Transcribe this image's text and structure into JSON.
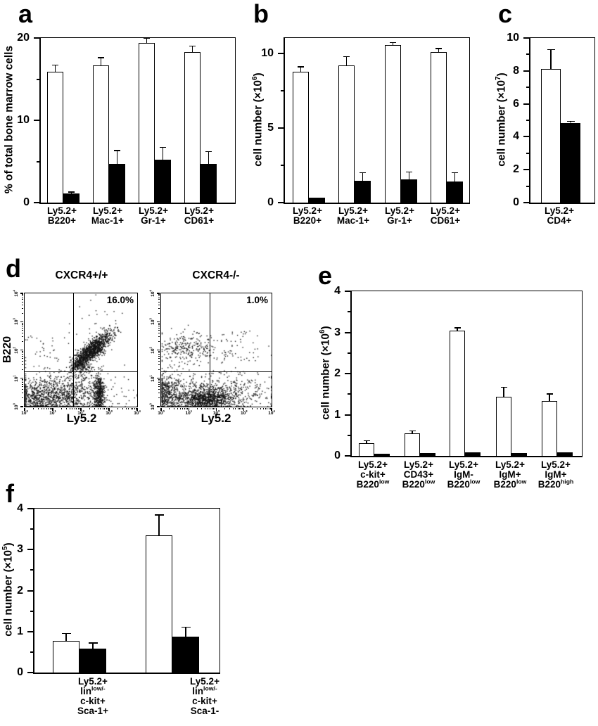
{
  "chart_data": [
    {
      "type": "bar",
      "panel": "a",
      "ylabel": "% of total bone marrow cells",
      "ylim": [
        0,
        20
      ],
      "yticks": [
        0,
        10,
        20
      ],
      "yticks_minor": [
        5,
        15
      ],
      "categories": [
        [
          "Ly5.2+",
          "B220+"
        ],
        [
          "Ly5.2+",
          "Mac-1+"
        ],
        [
          "Ly5.2+",
          "Gr-1+"
        ],
        [
          "Ly5.2+",
          "CD61+"
        ]
      ],
      "series": [
        {
          "name": "white",
          "fill": "#ffffff",
          "values": [
            15.9,
            16.7,
            19.4,
            18.3
          ],
          "errors": [
            0.8,
            0.9,
            0.6,
            0.7
          ]
        },
        {
          "name": "black",
          "fill": "#000000",
          "values": [
            1.1,
            4.7,
            5.2,
            4.7
          ],
          "errors": [
            0.2,
            1.6,
            1.5,
            1.5
          ]
        }
      ]
    },
    {
      "type": "bar",
      "panel": "b",
      "ylabel": "cell number (×10^{6})",
      "ylim": [
        0,
        11.05
      ],
      "yticks": [
        0,
        5,
        10
      ],
      "yticks_minor": [
        2.5,
        7.5
      ],
      "categories": [
        [
          "Ly5.2+",
          "B220+"
        ],
        [
          "Ly5.2+",
          "Mac-1+"
        ],
        [
          "Ly5.2+",
          "Gr-1+"
        ],
        [
          "Ly5.2+",
          "CD61+"
        ]
      ],
      "series": [
        {
          "name": "white",
          "fill": "#ffffff",
          "values": [
            8.8,
            9.2,
            10.6,
            10.1
          ],
          "errors": [
            0.3,
            0.6,
            0.15,
            0.25
          ]
        },
        {
          "name": "black",
          "fill": "#000000",
          "values": [
            0.35,
            1.45,
            1.55,
            1.4
          ],
          "errors": [
            0,
            0.55,
            0.5,
            0.6
          ]
        }
      ]
    },
    {
      "type": "bar",
      "panel": "c",
      "ylabel": "cell number (×10^{7})",
      "ylim": [
        0,
        10
      ],
      "yticks": [
        0,
        2,
        4,
        6,
        8,
        10
      ],
      "yticks_minor": [
        1,
        3,
        5,
        7,
        9
      ],
      "categories": [
        [
          "Ly5.2+",
          "CD4+"
        ]
      ],
      "series": [
        {
          "name": "white",
          "fill": "#ffffff",
          "values": [
            8.1
          ],
          "errors": [
            1.2
          ]
        },
        {
          "name": "black",
          "fill": "#000000",
          "values": [
            4.85
          ],
          "errors": [
            0.08
          ]
        }
      ]
    },
    {
      "type": "scatter",
      "panel": "d",
      "plots": [
        {
          "title": "CXCR4+/+",
          "xlabel": "Ly5.2",
          "ylabel": "B220",
          "gate_label": "16.0%",
          "xticks": [
            "10^{0}",
            "10^{1}",
            "10^{2}",
            "10^{3}",
            "10^{4}"
          ],
          "yticks": [
            "10^{0}",
            "10^{1}",
            "10^{2}",
            "10^{3}",
            "10^{4}"
          ],
          "quadrant_x_frac": 0.43,
          "quadrant_y_frac": 0.31,
          "clusters": [
            {
              "type": "diag",
              "x0": 0.45,
              "y0": 0.37,
              "x1": 0.8,
              "y1": 0.68,
              "tmean": 0.38,
              "tsd": 0.25,
              "spread": 0.03,
              "n": 1300
            },
            {
              "type": "blob",
              "cx": 0.52,
              "cy": 0.33,
              "sx": 0.05,
              "sy": 0.04,
              "n": 80
            },
            {
              "type": "blob",
              "cx": 0.35,
              "cy": 0.1,
              "sx": 0.18,
              "sy": 0.085,
              "n": 800
            },
            {
              "type": "blob",
              "cx": 0.66,
              "cy": 0.11,
              "sx": 0.022,
              "sy": 0.095,
              "n": 450
            },
            {
              "type": "blob",
              "cx": 0.09,
              "cy": 0.09,
              "sx": 0.09,
              "sy": 0.075,
              "n": 380
            },
            {
              "type": "blob",
              "cx": 0.4,
              "cy": 0.13,
              "sx": 0.3,
              "sy": 0.1,
              "n": 200
            },
            {
              "type": "blob",
              "cx": 0.22,
              "cy": 0.5,
              "sx": 0.16,
              "sy": 0.13,
              "n": 45
            },
            {
              "type": "blob",
              "cx": 0.62,
              "cy": 0.78,
              "sx": 0.12,
              "sy": 0.09,
              "n": 20
            }
          ]
        },
        {
          "title": "CXCR4-/-",
          "xlabel": "Ly5.2",
          "ylabel": "",
          "gate_label": "1.0%",
          "xticks": [
            "10^{0}",
            "10^{1}",
            "10^{2}",
            "10^{3}",
            "10^{4}"
          ],
          "yticks": [
            "10^{0}",
            "10^{1}",
            "10^{2}",
            "10^{3}",
            "10^{4}"
          ],
          "quadrant_x_frac": 0.44,
          "quadrant_y_frac": 0.31,
          "clusters": [
            {
              "type": "blob",
              "cx": 0.22,
              "cy": 0.53,
              "sx": 0.12,
              "sy": 0.065,
              "n": 200
            },
            {
              "type": "blob",
              "cx": 0.45,
              "cy": 0.5,
              "sx": 0.22,
              "sy": 0.09,
              "n": 120
            },
            {
              "type": "blob",
              "cx": 0.4,
              "cy": 0.075,
              "sx": 0.14,
              "sy": 0.055,
              "n": 1100
            },
            {
              "type": "blob",
              "cx": 0.05,
              "cy": 0.12,
              "sx": 0.06,
              "sy": 0.1,
              "n": 420
            },
            {
              "type": "blob",
              "cx": 0.45,
              "cy": 0.15,
              "sx": 0.28,
              "sy": 0.1,
              "n": 350
            },
            {
              "type": "blob",
              "cx": 0.8,
              "cy": 0.1,
              "sx": 0.1,
              "sy": 0.07,
              "n": 60
            },
            {
              "type": "blob",
              "cx": 0.75,
              "cy": 0.62,
              "sx": 0.1,
              "sy": 0.07,
              "n": 10
            }
          ]
        }
      ]
    },
    {
      "type": "bar",
      "panel": "e",
      "ylabel": "cell number (×10^{6})",
      "ylim": [
        0,
        4
      ],
      "yticks": [
        0,
        1,
        2,
        3,
        4
      ],
      "yticks_minor": [
        0.5,
        1.5,
        2.5,
        3.5
      ],
      "categories": [
        [
          "Ly5.2+",
          "c-kit+",
          "B220^{low}"
        ],
        [
          "Ly5.2+",
          "CD43+",
          "B220^{low}"
        ],
        [
          "Ly5.2+",
          "IgM-",
          "B220^{low}"
        ],
        [
          "Ly5.2+",
          "IgM+",
          "B220^{low}"
        ],
        [
          "Ly5.2+",
          "IgM+",
          "B220^{high}"
        ]
      ],
      "series": [
        {
          "name": "white",
          "fill": "#ffffff",
          "values": [
            0.31,
            0.55,
            3.05,
            1.43,
            1.33
          ],
          "errors": [
            0.06,
            0.06,
            0.06,
            0.24,
            0.17
          ]
        },
        {
          "name": "black",
          "fill": "#000000",
          "values": [
            0.05,
            0.07,
            0.09,
            0.07,
            0.09
          ],
          "errors": [
            0,
            0,
            0,
            0,
            0
          ]
        }
      ]
    },
    {
      "type": "bar",
      "panel": "f",
      "ylabel": "cell number (×10^{5})",
      "ylim": [
        0,
        4
      ],
      "yticks": [
        0,
        1,
        2,
        3,
        4
      ],
      "yticks_minor": [
        0.5,
        1.5,
        2.5,
        3.5
      ],
      "categories": [
        [
          "Ly5.2+",
          "lin^{low/-}",
          "c-kit+",
          "Sca-1+"
        ],
        [
          "Ly5.2+",
          "lin^{low/-}",
          "c-kit+",
          "Sca-1-"
        ]
      ],
      "series": [
        {
          "name": "white",
          "fill": "#ffffff",
          "values": [
            0.78,
            3.35
          ],
          "errors": [
            0.17,
            0.5
          ]
        },
        {
          "name": "black",
          "fill": "#000000",
          "values": [
            0.58,
            0.87
          ],
          "errors": [
            0.14,
            0.24
          ]
        }
      ]
    }
  ]
}
